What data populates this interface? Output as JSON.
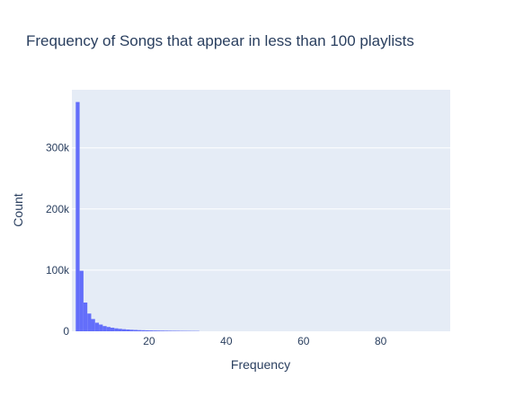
{
  "chart_data": {
    "type": "bar",
    "title": "Frequency of Songs that appear in less than 100 playlists",
    "xlabel": "Frequency",
    "ylabel": "Count",
    "xlim": [
      0,
      98
    ],
    "ylim": [
      0,
      395000
    ],
    "grid": true,
    "legend": "none",
    "bar_color": "#636efa",
    "plot_bg": "#e5ecf6",
    "text_color": "#2a3f5f",
    "x_ticks": [
      20,
      40,
      60,
      80
    ],
    "x_tick_labels": [
      "20",
      "40",
      "60",
      "80"
    ],
    "y_ticks": [
      0,
      100000,
      200000,
      300000
    ],
    "y_tick_labels": [
      "0",
      "100k",
      "200k",
      "300k"
    ],
    "bin_width": 1,
    "bins_start": [
      1,
      2,
      3,
      4,
      5,
      6,
      7,
      8,
      9,
      10,
      11,
      12,
      13,
      14,
      15,
      16,
      17,
      18,
      19,
      20,
      21,
      22,
      23,
      24,
      25,
      26,
      27,
      28,
      29,
      30,
      31,
      32
    ],
    "values": [
      375000,
      99000,
      47000,
      29000,
      20000,
      14000,
      11000,
      8500,
      7000,
      5800,
      4800,
      4000,
      3400,
      2900,
      2500,
      2200,
      1900,
      1700,
      1500,
      1350,
      1200,
      1100,
      1000,
      900,
      820,
      750,
      690,
      630,
      580,
      540,
      500,
      460
    ]
  }
}
